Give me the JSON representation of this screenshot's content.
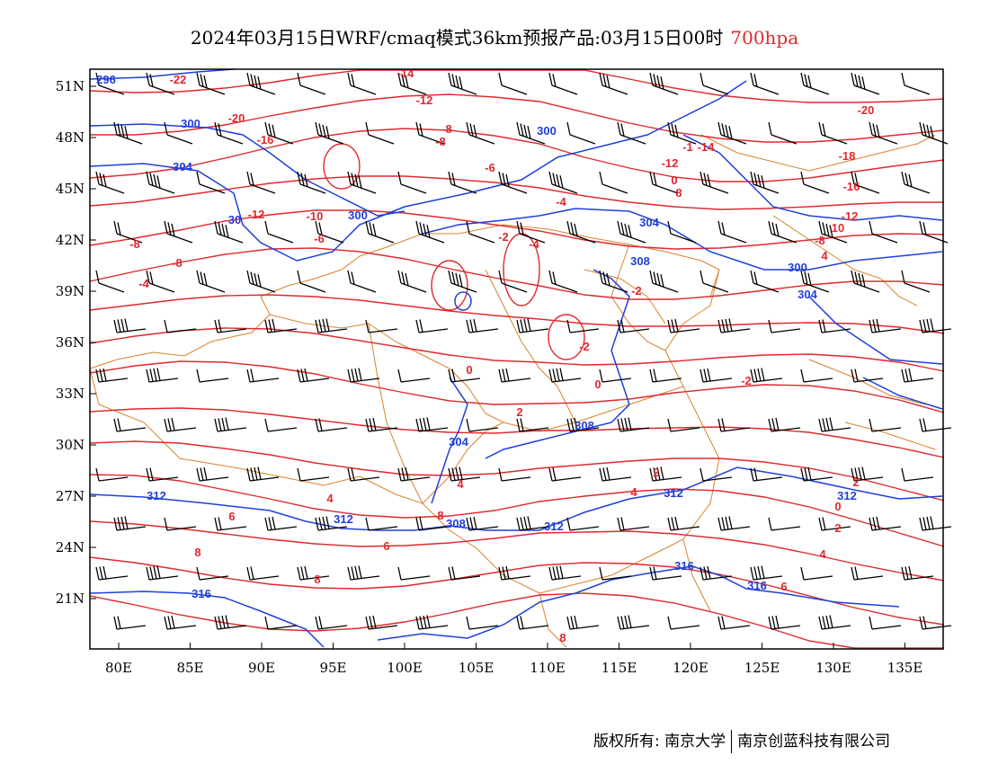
{
  "title": {
    "main": "2024年03月15日WRF/cmaq模式36km预报产品:03月15日00时",
    "level": "700hpa",
    "level_color": "#e0282d"
  },
  "map": {
    "lon_labels": [
      "80E",
      "85E",
      "90E",
      "95E",
      "100E",
      "105E",
      "110E",
      "115E",
      "120E",
      "125E",
      "130E",
      "135E"
    ],
    "lat_labels": [
      "51N",
      "48N",
      "45N",
      "42N",
      "39N",
      "36N",
      "33N",
      "30N",
      "27N",
      "24N",
      "21N"
    ],
    "temperature_labels": [
      "-22",
      "-20",
      "-16",
      "-14",
      "-12",
      "-10",
      "-8",
      "-6",
      "-4",
      "-2",
      "0",
      "2",
      "4",
      "6",
      "8",
      "-1",
      "-18",
      "10"
    ],
    "geopotential_labels": [
      "296",
      "300",
      "304",
      "308",
      "312",
      "316"
    ],
    "colors": {
      "temperature": "#e0282d",
      "geopotential": "#1f3fdc",
      "boundary": "#d9822b",
      "wind": "#000000"
    }
  },
  "footer": {
    "owner": "版权所有: 南京大学",
    "company": "南京创蓝科技有限公司"
  }
}
